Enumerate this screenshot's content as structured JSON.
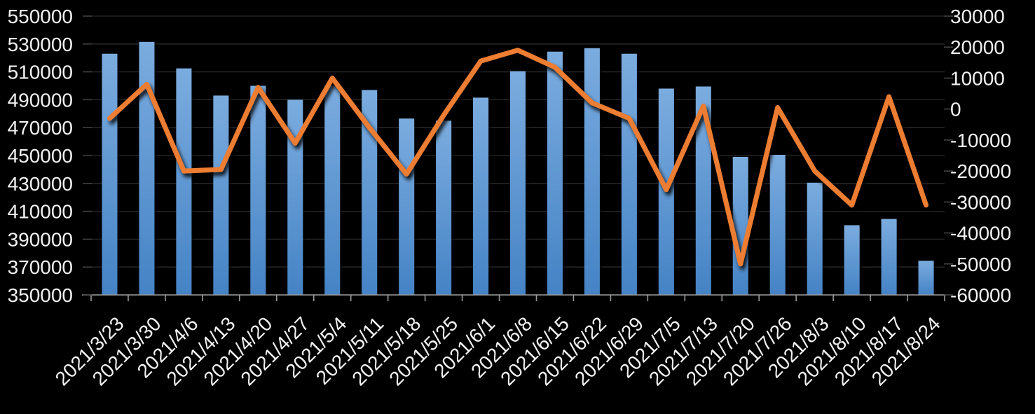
{
  "colors": {
    "background": "#000000",
    "bar_gradient_top": "#7bacdf",
    "bar_gradient_bottom": "#4583c5",
    "line": "#ed7d31",
    "gridline": "#2b2b2b",
    "axis_line": "#9b9b9b",
    "tick_mark": "#4a4a4a",
    "bottom_tick_mark": "#9b9b9b",
    "label_text": "#f2f2f2"
  },
  "chart_data": {
    "type": "combo-bar-line",
    "title": "",
    "xlabel": "",
    "ylabel": "",
    "legend": "none",
    "grid": "horizontal",
    "categories": [
      "2021/3/23",
      "2021/3/30",
      "2021/4/6",
      "2021/4/13",
      "2021/4/20",
      "2021/4/27",
      "2021/5/4",
      "2021/5/11",
      "2021/5/18",
      "2021/5/25",
      "2021/6/1",
      "2021/6/8",
      "2021/6/15",
      "2021/6/22",
      "2021/6/29",
      "2021/7/5",
      "2021/7/13",
      "2021/7/20",
      "2021/7/26",
      "2021/8/3",
      "2021/8/10",
      "2021/8/17",
      "2021/8/24"
    ],
    "series": [
      {
        "name": "bars",
        "type": "bar",
        "axis": "left",
        "values": [
          523000,
          531500,
          512500,
          493000,
          500000,
          490000,
          500000,
          497000,
          476500,
          475000,
          491500,
          510500,
          524500,
          527000,
          523000,
          498000,
          499500,
          449000,
          450500,
          430500,
          400000,
          404500,
          374500
        ]
      },
      {
        "name": "line",
        "type": "line",
        "axis": "right",
        "values": [
          -3000,
          8000,
          -20000,
          -19500,
          7000,
          -11000,
          10000,
          -6000,
          -21000,
          -2000,
          15500,
          19000,
          13500,
          2000,
          -3000,
          -26000,
          1000,
          -50000,
          500,
          -20000,
          -31000,
          4000,
          -31000
        ]
      }
    ],
    "left_axis": {
      "min": 350000,
      "max": 550000,
      "step": 20000,
      "tick_labels": [
        "550000",
        "530000",
        "510000",
        "490000",
        "470000",
        "450000",
        "430000",
        "410000",
        "390000",
        "370000",
        "350000"
      ]
    },
    "right_axis": {
      "min": -60000,
      "max": 30000,
      "step": 10000,
      "tick_labels": [
        "30000",
        "20000",
        "10000",
        "0",
        "-10000",
        "-20000",
        "-30000",
        "-40000",
        "-50000",
        "-60000"
      ]
    }
  }
}
